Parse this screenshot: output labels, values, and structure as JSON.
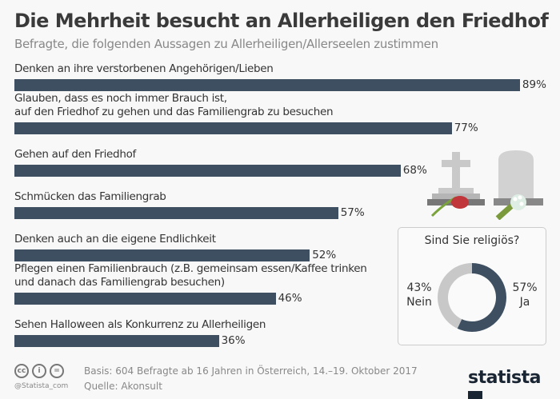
{
  "chart_data": {
    "type": "bar",
    "orientation": "horizontal",
    "title": "Die Mehrheit besucht an Allerheiligen den Friedhof",
    "subtitle": "Befragte, die folgenden Aussagen zu Allerheiligen/Allerseelen zustimmen",
    "categories": [
      "Denken an ihre verstorbenen Angehörigen/Lieben",
      "Glauben, dass es noch immer Brauch ist,\nauf den Friedhof zu gehen und das Familiengrab zu besuchen",
      "Gehen auf den Friedhof",
      "Schmücken das Familiengrab",
      "Denken auch an die eigene Endlichkeit",
      "Pflegen einen Familienbrauch (z.B. gemeinsam essen/Kaffee trinken\nund danach das Familiengrab besuchen)",
      "Sehen Halloween als Konkurrenz zu Allerheiligen"
    ],
    "values": [
      89,
      77,
      68,
      57,
      52,
      46,
      36
    ],
    "value_labels": [
      "89%",
      "77%",
      "68%",
      "57%",
      "52%",
      "46%",
      "36%"
    ],
    "unit": "%",
    "xlim": [
      0,
      100
    ],
    "grid": false,
    "bar_color": "#3d4f61",
    "donut": {
      "type": "pie",
      "title": "Sind Sie religiös?",
      "slices": [
        {
          "label": "Ja",
          "value": 57,
          "value_label": "57%",
          "color": "#3d4f61"
        },
        {
          "label": "Nein",
          "value": 43,
          "value_label": "43%",
          "color": "#c8c8c8"
        }
      ]
    }
  },
  "footer": {
    "basis": "Basis: 604 Befragte ab 16 Jahren in Österreich, 14.–19. Oktober 2017",
    "source": "Quelle: Akonsult",
    "handle": "@Statista_com",
    "brand": "statista",
    "license_icons": [
      "cc-icon",
      "by-icon",
      "nd-icon"
    ]
  }
}
